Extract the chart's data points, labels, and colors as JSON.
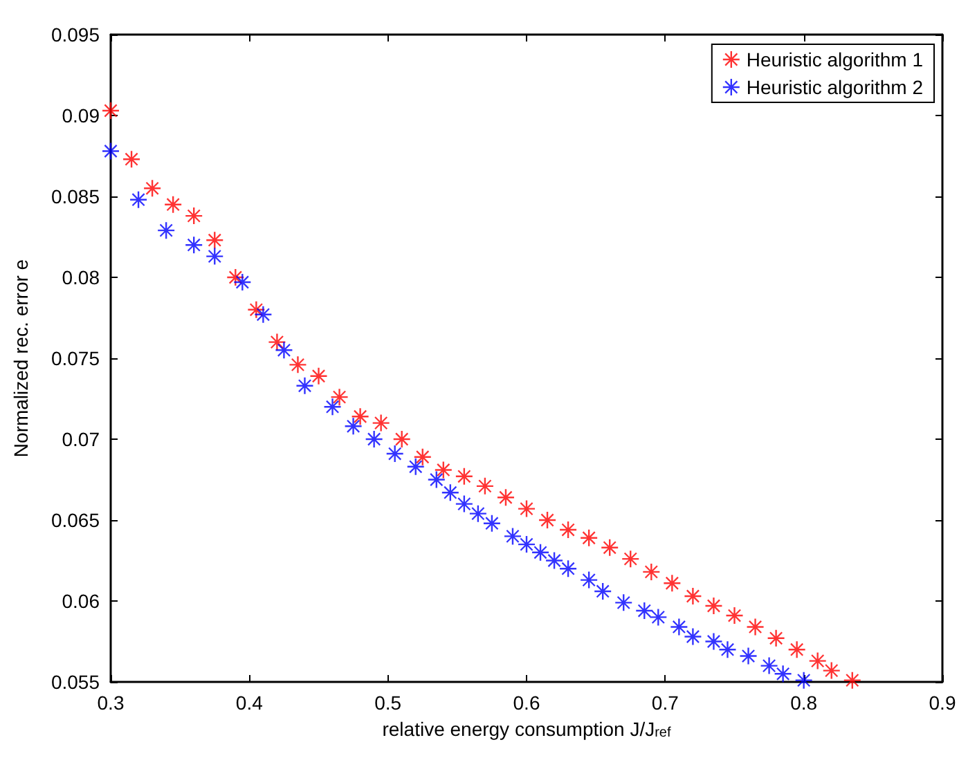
{
  "chart_data": {
    "type": "scatter",
    "xlabel": "relative energy consumption J/J$_{ref}$",
    "ylabel": "Normalized rec. error e",
    "xlim": [
      0.3,
      0.9
    ],
    "xticks": [
      0.3,
      0.4,
      0.5,
      0.6,
      0.7,
      0.8,
      0.9
    ],
    "ylim": [
      0.055,
      0.095
    ],
    "yticks": [
      0.055,
      0.06,
      0.065,
      0.07,
      0.075,
      0.08,
      0.085,
      0.09,
      0.095
    ],
    "grid": false,
    "legend": "top right",
    "marker": "star",
    "series": [
      {
        "name": "Heuristic algorithm 1",
        "color": "#ff0000",
        "x": [
          0.3,
          0.315,
          0.33,
          0.345,
          0.36,
          0.375,
          0.39,
          0.405,
          0.42,
          0.435,
          0.45,
          0.465,
          0.48,
          0.495,
          0.51,
          0.525,
          0.54,
          0.555,
          0.57,
          0.585,
          0.6,
          0.615,
          0.63,
          0.645,
          0.66,
          0.675,
          0.69,
          0.705,
          0.72,
          0.735,
          0.75,
          0.765,
          0.78,
          0.795,
          0.81,
          0.82,
          0.835
        ],
        "values": [
          0.0903,
          0.0873,
          0.0855,
          0.0845,
          0.0838,
          0.0823,
          0.08,
          0.078,
          0.076,
          0.0746,
          0.0739,
          0.0726,
          0.0714,
          0.071,
          0.07,
          0.0689,
          0.0681,
          0.0677,
          0.0671,
          0.0664,
          0.0657,
          0.065,
          0.0644,
          0.0639,
          0.0633,
          0.0626,
          0.0618,
          0.0611,
          0.0603,
          0.0597,
          0.0591,
          0.0584,
          0.0577,
          0.057,
          0.0563,
          0.0557,
          0.0551
        ]
      },
      {
        "name": "Heuristic algorithm 2",
        "color": "#0000ff",
        "x": [
          0.3,
          0.32,
          0.34,
          0.36,
          0.375,
          0.395,
          0.41,
          0.425,
          0.44,
          0.46,
          0.475,
          0.49,
          0.505,
          0.52,
          0.535,
          0.545,
          0.555,
          0.565,
          0.575,
          0.59,
          0.6,
          0.61,
          0.62,
          0.63,
          0.645,
          0.655,
          0.67,
          0.685,
          0.695,
          0.71,
          0.72,
          0.735,
          0.745,
          0.76,
          0.775,
          0.785,
          0.8
        ],
        "values": [
          0.0878,
          0.0848,
          0.0829,
          0.082,
          0.0813,
          0.0797,
          0.0777,
          0.0755,
          0.0733,
          0.072,
          0.0708,
          0.07,
          0.0691,
          0.0683,
          0.0675,
          0.0667,
          0.066,
          0.0654,
          0.0648,
          0.064,
          0.0635,
          0.063,
          0.0625,
          0.062,
          0.0613,
          0.0606,
          0.0599,
          0.0594,
          0.059,
          0.0584,
          0.0578,
          0.0575,
          0.057,
          0.0566,
          0.056,
          0.0555,
          0.0551
        ]
      }
    ]
  }
}
